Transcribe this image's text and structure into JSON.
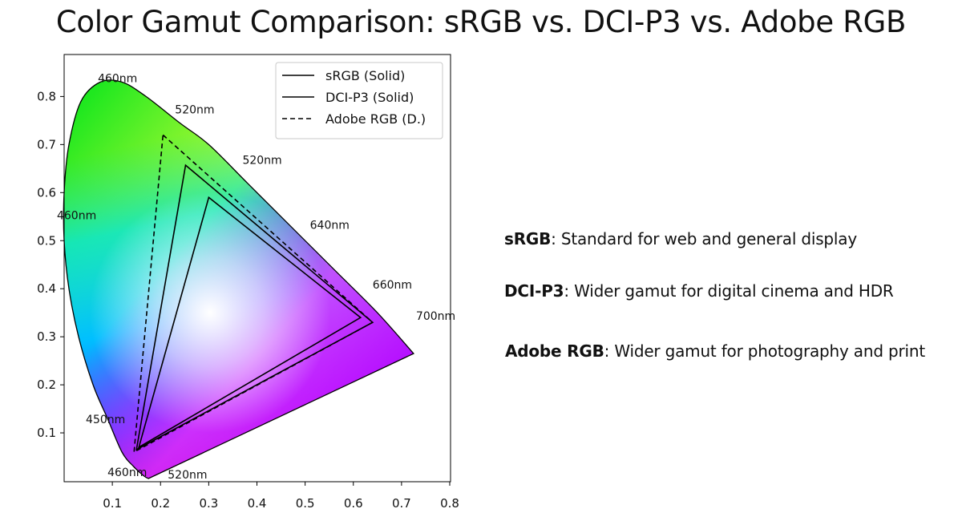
{
  "title": "Color Gamut Comparison: sRGB vs. DCI-P3 vs. Adobe RGB",
  "chart_data": {
    "type": "line",
    "xlabel": "",
    "ylabel": "",
    "xlim": [
      0.0,
      0.8
    ],
    "ylim": [
      0.0,
      0.87
    ],
    "x_ticks": [
      "0.1",
      "0.2",
      "0.3",
      "0.4",
      "0.5",
      "0.6",
      "0.7",
      "0.8"
    ],
    "y_ticks": [
      "0.1",
      "0.2",
      "0.3",
      "0.4",
      "0.5",
      "0.6",
      "0.7",
      "0.8"
    ],
    "grid": false,
    "legend_position": "top-right",
    "spectral_locus": [
      [
        0.175,
        0.005
      ],
      [
        0.166,
        0.01
      ],
      [
        0.144,
        0.03
      ],
      [
        0.12,
        0.06
      ],
      [
        0.09,
        0.13
      ],
      [
        0.06,
        0.2
      ],
      [
        0.03,
        0.3
      ],
      [
        0.01,
        0.4
      ],
      [
        0.0,
        0.5
      ],
      [
        0.0,
        0.6
      ],
      [
        0.01,
        0.7
      ],
      [
        0.035,
        0.79
      ],
      [
        0.075,
        0.83
      ],
      [
        0.12,
        0.83
      ],
      [
        0.17,
        0.8
      ],
      [
        0.24,
        0.745
      ],
      [
        0.3,
        0.7
      ],
      [
        0.38,
        0.62
      ],
      [
        0.46,
        0.54
      ],
      [
        0.56,
        0.44
      ],
      [
        0.65,
        0.35
      ],
      [
        0.725,
        0.265
      ]
    ],
    "series": [
      {
        "name": "sRGB (Solid)",
        "style": "solid",
        "color": "#000000",
        "points": [
          [
            0.3,
            0.59
          ],
          [
            0.615,
            0.34
          ],
          [
            0.155,
            0.07
          ]
        ]
      },
      {
        "name": "DCI-P3 (Solid)",
        "style": "solid",
        "color": "#000000",
        "points": [
          [
            0.252,
            0.657
          ],
          [
            0.64,
            0.33
          ],
          [
            0.15,
            0.065
          ]
        ]
      },
      {
        "name": "Adobe RGB (D.)",
        "style": "dashed",
        "color": "#000000",
        "points": [
          [
            0.205,
            0.72
          ],
          [
            0.64,
            0.33
          ],
          [
            0.145,
            0.06
          ]
        ]
      }
    ],
    "wavelength_labels": [
      {
        "text": "460nm",
        "x": 0.07,
        "y": 0.83
      },
      {
        "text": "520nm",
        "x": 0.23,
        "y": 0.765
      },
      {
        "text": "520nm",
        "x": 0.37,
        "y": 0.66
      },
      {
        "text": "460nm",
        "x": -0.015,
        "y": 0.545
      },
      {
        "text": "640nm",
        "x": 0.51,
        "y": 0.525
      },
      {
        "text": "660nm",
        "x": 0.64,
        "y": 0.4
      },
      {
        "text": "700nm",
        "x": 0.73,
        "y": 0.335
      },
      {
        "text": "450nm",
        "x": 0.045,
        "y": 0.12
      },
      {
        "text": "460nm",
        "x": 0.09,
        "y": 0.01
      },
      {
        "text": "520nm",
        "x": 0.215,
        "y": 0.005
      }
    ]
  },
  "descriptions": [
    {
      "name": "sRGB",
      "text": ": Standard for web and general display"
    },
    {
      "name": "DCI-P3",
      "text": ": Wider gamut for digital cinema and HDR"
    },
    {
      "name": "Adobe RGB",
      "text": ": Wider gamut for photography and print"
    }
  ]
}
